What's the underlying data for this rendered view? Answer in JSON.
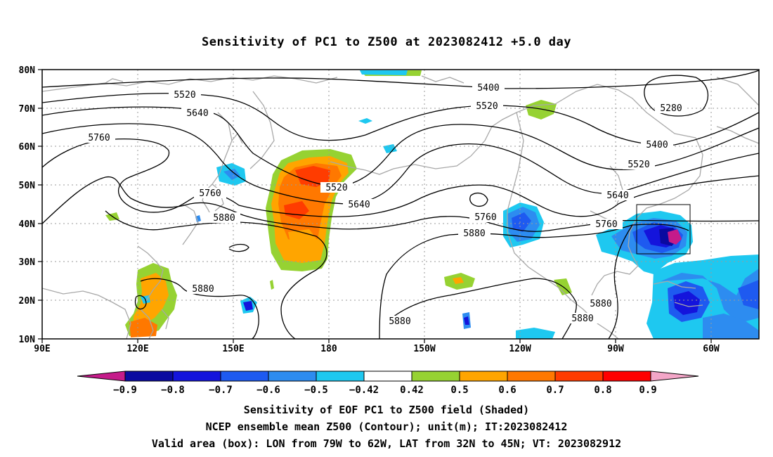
{
  "title": "Sensitivity of PC1 to Z500 at 2023082412 +5.0 day",
  "lat_labels": [
    "80N",
    "70N",
    "60N",
    "50N",
    "40N",
    "30N",
    "20N",
    "10N"
  ],
  "lon_labels": [
    "90E",
    "120E",
    "150E",
    "180",
    "150W",
    "120W",
    "90W",
    "60W"
  ],
  "contour_labels": [
    "5520",
    "5640",
    "5760",
    "5400",
    "5520",
    "5280",
    "5400",
    "5520",
    "5640",
    "5760",
    "5880",
    "5520",
    "5640",
    "5760",
    "5880",
    "5760",
    "5880",
    "5880",
    "5880",
    "5880"
  ],
  "colorbar": {
    "labels": [
      "−0.9",
      "−0.8",
      "−0.7",
      "−0.6",
      "−0.5",
      "−0.42",
      "0.42",
      "0.5",
      "0.6",
      "0.7",
      "0.8",
      "0.9"
    ],
    "colors": [
      "#c51b8a",
      "#0a0aa0",
      "#1414dc",
      "#1e5af0",
      "#2d8cf0",
      "#1ec8f0",
      "#ffffff",
      "#96d232",
      "#ffa500",
      "#ff7800",
      "#ff3c00",
      "#ff0000",
      "#f4a6c8"
    ]
  },
  "caption": {
    "line1": "Sensitivity of EOF PC1 to Z500 field (Shaded)",
    "line2": "NCEP ensemble mean Z500 (Contour); unit(m); IT:2023082412",
    "line3": "Valid area (box): LON from 79W to 62W, LAT from 32N to 45N; VT: 2023082912"
  }
}
